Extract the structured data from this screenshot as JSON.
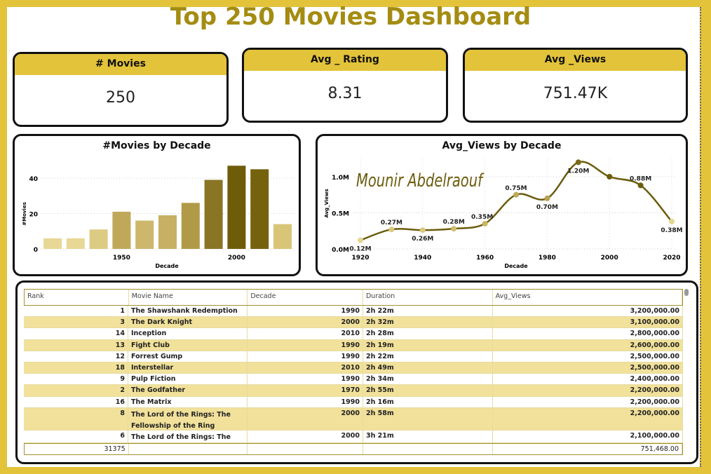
{
  "title": "Top 250 Movies Dashboard",
  "cards": [
    {
      "label": "# Movies",
      "value": "250"
    },
    {
      "label": "Avg _ Rating",
      "value": "8.31"
    },
    {
      "label": "Avg _Views",
      "value": "751.47K"
    }
  ],
  "watermark": "Mounir Abdelraouf",
  "colors": {
    "accent": "#e3c33a",
    "title": "#a48c12",
    "line": "#6b5c0c"
  },
  "chart_data": [
    {
      "type": "bar",
      "title": "#Movies by Decade",
      "xlabel": "Decade",
      "ylabel": "#Movies",
      "categories": [
        1920,
        1930,
        1940,
        1950,
        1960,
        1970,
        1980,
        1990,
        2000,
        2010,
        2020
      ],
      "values": [
        6,
        6,
        11,
        21,
        16,
        19,
        26,
        39,
        47,
        45,
        14
      ],
      "xticks": [
        "1950",
        "2000"
      ],
      "yticks": [
        "0",
        "20",
        "40"
      ],
      "ylim": [
        0,
        50
      ],
      "grid": true
    },
    {
      "type": "line",
      "title": "Avg_Views by Decade",
      "xlabel": "Decade",
      "ylabel": "Avg_Views",
      "x": [
        1920,
        1930,
        1940,
        1950,
        1960,
        1970,
        1980,
        1990,
        2000,
        2010,
        2020
      ],
      "values": [
        0.12,
        0.27,
        0.26,
        0.28,
        0.35,
        0.75,
        0.7,
        1.2,
        1.0,
        0.88,
        0.38
      ],
      "labels": [
        "0.12M",
        "0.27M",
        "0.26M",
        "0.28M",
        "0.35M",
        "0.75M",
        "0.70M",
        "1.20M",
        "",
        "0.88M",
        "0.38M"
      ],
      "xticks": [
        "1920",
        "1940",
        "1960",
        "1980",
        "2000",
        "2020"
      ],
      "yticks": [
        "0.0M",
        "0.5M",
        "1.0M"
      ],
      "ylim": [
        0,
        1.25
      ],
      "grid": true
    }
  ],
  "table": {
    "columns": [
      "Rank",
      "Movie Name",
      "Decade",
      "Duration",
      "Avg_Views"
    ],
    "rows": [
      [
        "1",
        "The Shawshank Redemption",
        "1990",
        "2h 22m",
        "3,200,000.00"
      ],
      [
        "3",
        "The Dark Knight",
        "2000",
        "2h 32m",
        "3,100,000.00"
      ],
      [
        "14",
        "Inception",
        "2010",
        "2h 28m",
        "2,800,000.00"
      ],
      [
        "13",
        "Fight Club",
        "1990",
        "2h 19m",
        "2,600,000.00"
      ],
      [
        "12",
        "Forrest Gump",
        "1990",
        "2h 22m",
        "2,500,000.00"
      ],
      [
        "18",
        "Interstellar",
        "2010",
        "2h 49m",
        "2,500,000.00"
      ],
      [
        "9",
        "Pulp Fiction",
        "1990",
        "2h 34m",
        "2,400,000.00"
      ],
      [
        "2",
        "The Godfather",
        "1970",
        "2h 55m",
        "2,200,000.00"
      ],
      [
        "16",
        "The Matrix",
        "1990",
        "2h 16m",
        "2,200,000.00"
      ],
      [
        "8",
        "The Lord of the Rings: The Fellowship of the Ring",
        "2000",
        "2h 58m",
        "2,200,000.00"
      ],
      [
        "6",
        "The Lord of the Rings: The Return of the King",
        "2000",
        "3h 21m",
        "2,100,000.00"
      ]
    ],
    "total": {
      "rank": "31375",
      "avg_views": "751,468.00"
    }
  }
}
